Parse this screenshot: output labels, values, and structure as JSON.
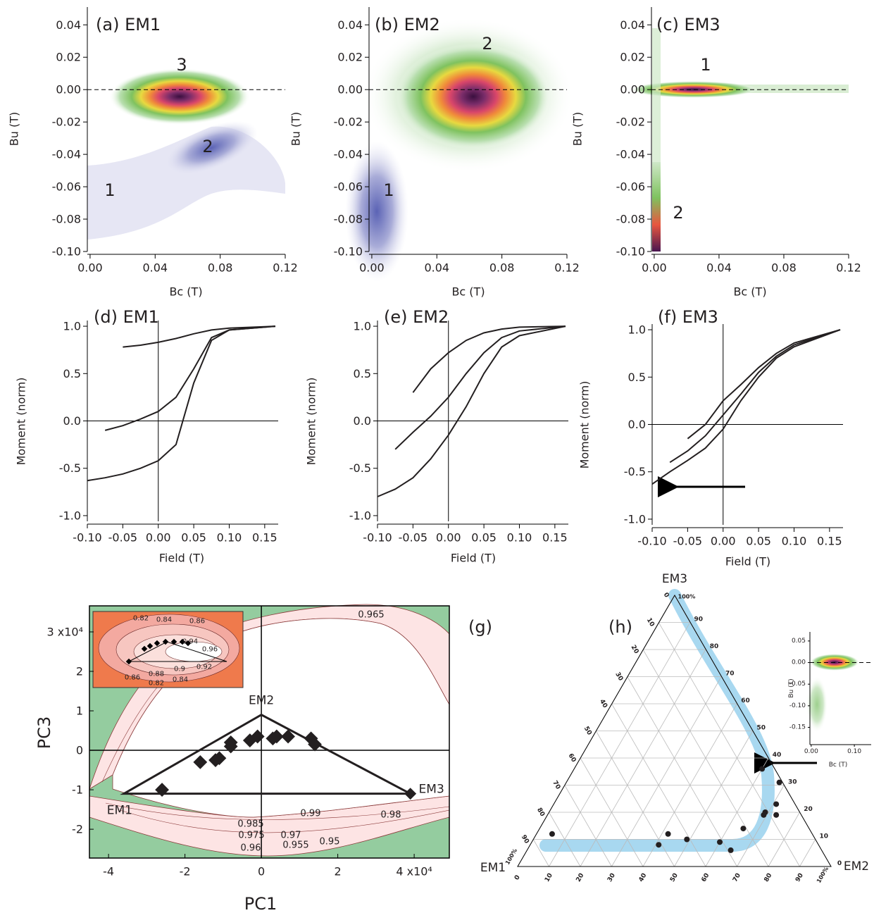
{
  "chart_data": [
    {
      "type": "heatmap",
      "title": "(a) EM1",
      "xlabel": "Bc (T)",
      "ylabel": "Bu (T)",
      "xlim": [
        -0.0017,
        0.12
      ],
      "ylim": [
        -0.1,
        0.051
      ],
      "xticks": [
        {
          "value": 0,
          "label": "0.00"
        },
        0.04,
        0.08,
        0.12
      ],
      "yticks": [
        0.04,
        0.02,
        {
          "value": 0,
          "label": "0.00"
        },
        -0.02,
        -0.04,
        -0.06,
        -0.08,
        {
          "value": -0.1,
          "label": "-0.10"
        }
      ],
      "peak_labels": [
        "3",
        "2",
        "1"
      ]
    },
    {
      "type": "heatmap",
      "title": "(b) EM2",
      "xlabel": "Bc (T)",
      "ylabel": "Bu (T)",
      "xlim": [
        -0.0017,
        0.12
      ],
      "ylim": [
        -0.1,
        0.051
      ],
      "xticks": [
        {
          "value": 0,
          "label": "0.00"
        },
        0.04,
        0.08,
        0.12
      ],
      "yticks": [
        0.04,
        0.02,
        {
          "value": 0,
          "label": "0.00"
        },
        -0.02,
        -0.04,
        -0.06,
        -0.08,
        {
          "value": -0.1,
          "label": "-0.10"
        }
      ],
      "peak_labels": [
        "2",
        "1"
      ]
    },
    {
      "type": "heatmap",
      "title": "(c) EM3",
      "xlabel": "Bc (T)",
      "ylabel": "Bu (T)",
      "xlim": [
        -0.0017,
        0.12
      ],
      "ylim": [
        -0.1,
        0.051
      ],
      "xticks": [
        {
          "value": 0,
          "label": "0.00"
        },
        0.04,
        0.08,
        0.12
      ],
      "yticks": [
        0.04,
        0.02,
        {
          "value": 0,
          "label": "0.00"
        },
        -0.02,
        -0.04,
        -0.06,
        -0.08,
        {
          "value": -0.1,
          "label": "-0.10"
        }
      ],
      "peak_labels": [
        "1",
        "2"
      ]
    },
    {
      "type": "line",
      "title": "(d) EM1",
      "xlabel": "Field (T)",
      "ylabel": "Moment (norm)",
      "xlim": [
        -0.1,
        0.169
      ],
      "ylim": [
        -1.06,
        1.06
      ],
      "xticks": [
        {
          "value": -0.1,
          "label": "-0.10"
        },
        -0.05,
        {
          "value": 0,
          "label": "0.00"
        },
        0.05,
        {
          "value": 0.1,
          "label": "0.10"
        },
        0.15
      ],
      "yticks": [
        {
          "value": 1,
          "label": "1.0"
        },
        0.5,
        {
          "value": 0,
          "label": "0.0"
        },
        -0.5,
        {
          "value": -1,
          "label": "-1.0"
        }
      ],
      "x": [
        -0.1,
        -0.075,
        -0.05,
        -0.025,
        0,
        0.025,
        0.05,
        0.075,
        0.1,
        0.165
      ],
      "series": [
        {
          "color": "#231f20",
          "values": [
            -0.63,
            -0.6,
            -0.56,
            -0.5,
            -0.42,
            -0.25,
            0.4,
            0.85,
            0.96,
            1.0
          ]
        },
        {
          "color": "#231f20",
          "values": [
            null,
            -0.1,
            -0.05,
            0.02,
            0.1,
            0.25,
            0.55,
            0.88,
            0.96,
            1.0
          ]
        },
        {
          "color": "#231f20",
          "values": [
            null,
            null,
            0.78,
            0.8,
            0.83,
            0.87,
            0.92,
            0.96,
            0.98,
            1.0
          ]
        }
      ]
    },
    {
      "type": "line",
      "title": "(e) EM2",
      "xlabel": "Field (T)",
      "ylabel": "Moment (norm)",
      "xlim": [
        -0.1,
        0.169
      ],
      "ylim": [
        -1.06,
        1.06
      ],
      "xticks": [
        {
          "value": -0.1,
          "label": "-0.10"
        },
        -0.05,
        {
          "value": 0,
          "label": "0.00"
        },
        0.05,
        {
          "value": 0.1,
          "label": "0.10"
        },
        0.15
      ],
      "yticks": [
        {
          "value": 1,
          "label": "1.0"
        },
        0.5,
        {
          "value": 0,
          "label": "0.0"
        },
        -0.5,
        {
          "value": -1,
          "label": "-1.0"
        }
      ],
      "x": [
        -0.1,
        -0.075,
        -0.05,
        -0.025,
        0,
        0.025,
        0.05,
        0.075,
        0.1,
        0.165
      ],
      "series": [
        {
          "color": "#231f20",
          "values": [
            -0.8,
            -0.72,
            -0.6,
            -0.4,
            -0.15,
            0.15,
            0.5,
            0.78,
            0.9,
            1.0
          ]
        },
        {
          "color": "#231f20",
          "values": [
            null,
            -0.3,
            -0.12,
            0.05,
            0.25,
            0.5,
            0.72,
            0.88,
            0.95,
            1.0
          ]
        },
        {
          "color": "#231f20",
          "values": [
            null,
            null,
            0.3,
            0.55,
            0.72,
            0.85,
            0.93,
            0.97,
            0.99,
            1.0
          ]
        }
      ]
    },
    {
      "type": "line",
      "title": "(f) EM3",
      "xlabel": "Field (T)",
      "ylabel": "Moment (norm)",
      "xlim": [
        -0.1,
        0.169
      ],
      "ylim": [
        -1.06,
        1.06
      ],
      "xticks": [
        {
          "value": -0.1,
          "label": "-0.10"
        },
        -0.05,
        {
          "value": 0,
          "label": "0.00"
        },
        0.05,
        {
          "value": 0.1,
          "label": "0.10"
        },
        0.15
      ],
      "yticks": [
        {
          "value": 1,
          "label": "1.0"
        },
        0.5,
        {
          "value": 0,
          "label": "0.0"
        },
        -0.5,
        {
          "value": -1,
          "label": "-1.0"
        }
      ],
      "x": [
        -0.1,
        -0.075,
        -0.05,
        -0.025,
        0,
        0.025,
        0.05,
        0.075,
        0.1,
        0.165
      ],
      "series": [
        {
          "color": "#231f20",
          "values": [
            -0.63,
            -0.5,
            -0.38,
            -0.25,
            -0.05,
            0.25,
            0.5,
            0.7,
            0.82,
            1.0
          ]
        },
        {
          "color": "#231f20",
          "values": [
            null,
            -0.4,
            -0.28,
            -0.12,
            0.1,
            0.32,
            0.55,
            0.72,
            0.84,
            1.0
          ]
        },
        {
          "color": "#231f20",
          "values": [
            null,
            null,
            -0.15,
            0.0,
            0.25,
            0.42,
            0.6,
            0.75,
            0.86,
            1.0
          ]
        }
      ]
    },
    {
      "type": "scatter",
      "title": "(g)",
      "xlabel": "PC1",
      "ylabel": "PC3",
      "xlim": [
        -4.5,
        4.92
      ],
      "ylim": [
        -2.73,
        3.66
      ],
      "xticks": [
        -4,
        -2,
        0,
        2,
        {
          "value": 4,
          "label": "4 x10⁴"
        }
      ],
      "yticks": [
        {
          "value": 3,
          "label": "3 x10⁴"
        },
        2,
        1,
        0,
        -1,
        -2
      ],
      "points": {
        "x": [
          -2.6,
          -1.6,
          -1.2,
          -1.1,
          -0.8,
          -0.8,
          -0.3,
          -0.1,
          0.3,
          0.4,
          0.7,
          1.3,
          1.4
        ],
        "y": [
          -1.0,
          -0.3,
          -0.25,
          -0.2,
          0.1,
          0.2,
          0.25,
          0.35,
          0.3,
          0.35,
          0.35,
          0.3,
          0.15
        ]
      },
      "endmembers": {
        "labels": [
          "EM1",
          "EM2",
          "EM3"
        ],
        "x": [
          -3.6,
          0,
          3.9
        ],
        "y": [
          -1.1,
          0.9,
          -1.1
        ]
      },
      "contour_labels": [
        "0.965",
        "0.99",
        "0.98",
        "0.985",
        "0.975",
        "0.97",
        "0.96",
        "0.955",
        "0.95"
      ],
      "inset_contour_labels": [
        "0.82",
        "0.84",
        "0.86",
        "0.94",
        "0.96",
        "0.9",
        "0.92",
        "0.86",
        "0.88",
        "0.84",
        "0.82"
      ]
    },
    {
      "type": "ternary",
      "title": "(h)",
      "vertex_labels": [
        "EM1",
        "EM2",
        "EM3"
      ],
      "corner_label": "100%",
      "ticks": [
        0,
        10,
        20,
        30,
        40,
        50,
        60,
        70,
        80,
        90
      ],
      "points": {
        "em2": [
          5,
          41,
          42,
          49,
          60,
          65,
          65,
          69,
          69,
          71,
          73,
          68,
          60
        ],
        "em3": [
          12,
          8,
          12,
          10,
          9,
          6,
          14,
          19,
          20,
          23,
          19,
          31,
          36
        ]
      }
    },
    {
      "type": "heatmap",
      "xlabel": "Bc (T)",
      "ylabel": "Bu (T)",
      "xlim": [
        -0.003,
        0.139
      ],
      "ylim": [
        -0.19,
        0.071
      ],
      "xticks": [
        {
          "value": 0,
          "label": "0.00"
        },
        {
          "value": 0.1,
          "label": "0.10"
        }
      ],
      "yticks": [
        0.05,
        {
          "value": 0,
          "label": "0.00"
        },
        -0.05,
        {
          "value": -0.1,
          "label": "-0.10"
        },
        -0.15
      ]
    }
  ]
}
